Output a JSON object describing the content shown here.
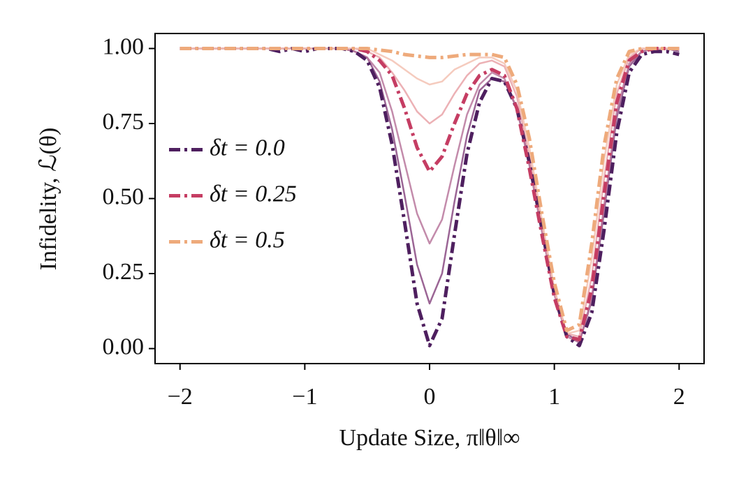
{
  "chart_data": {
    "type": "line",
    "xlabel": "Update Size, π‖θ‖∞",
    "ylabel": "Infidelity, ℒ(θ)",
    "x": [
      -2,
      -1.9,
      -1.8,
      -1.7,
      -1.6,
      -1.5,
      -1.4,
      -1.3,
      -1.2,
      -1.1,
      -1,
      -0.9,
      -0.8,
      -0.7,
      -0.6,
      -0.5,
      -0.4,
      -0.3,
      -0.2,
      -0.1,
      0,
      0.1,
      0.2,
      0.3,
      0.4,
      0.5,
      0.6,
      0.7,
      0.8,
      0.9,
      1,
      1.1,
      1.2,
      1.3,
      1.4,
      1.5,
      1.6,
      1.7,
      1.8,
      1.9,
      2
    ],
    "series": [
      {
        "name": "δt = 0.0",
        "color": "#4e1f5f",
        "dash": true,
        "values": [
          1,
          1,
          1,
          1,
          1,
          1,
          1,
          1,
          0.99,
          1,
          0.99,
          1,
          1,
          1,
          0.99,
          0.96,
          0.87,
          0.68,
          0.42,
          0.15,
          0.01,
          0.1,
          0.38,
          0.65,
          0.82,
          0.9,
          0.89,
          0.8,
          0.62,
          0.4,
          0.18,
          0.04,
          0.01,
          0.12,
          0.4,
          0.72,
          0.92,
          0.98,
          0.99,
          0.99,
          0.98
        ]
      },
      {
        "name": "δt = 0.25",
        "color": "#c53d63",
        "dash": true,
        "values": [
          1,
          1,
          1,
          1,
          1,
          1,
          1,
          1,
          1,
          1,
          1,
          1,
          1,
          1,
          1,
          0.99,
          0.96,
          0.91,
          0.8,
          0.67,
          0.59,
          0.64,
          0.75,
          0.85,
          0.91,
          0.93,
          0.91,
          0.8,
          0.6,
          0.38,
          0.17,
          0.04,
          0.03,
          0.2,
          0.52,
          0.82,
          0.96,
          0.99,
          1,
          1,
          1
        ]
      },
      {
        "name": "δt = 0.5",
        "color": "#eeaa7b",
        "dash": true,
        "values": [
          1,
          1,
          1,
          1,
          1,
          1,
          1,
          1,
          1,
          1,
          1,
          1,
          1,
          1,
          1,
          1,
          0.995,
          0.99,
          0.98,
          0.975,
          0.97,
          0.97,
          0.975,
          0.98,
          0.98,
          0.98,
          0.97,
          0.88,
          0.7,
          0.45,
          0.22,
          0.06,
          0.08,
          0.35,
          0.68,
          0.9,
          0.99,
          1,
          1,
          1,
          1
        ]
      },
      {
        "color": "#8a4a83",
        "dash": false,
        "values": [
          1,
          1,
          1,
          1,
          1,
          1,
          1,
          1,
          1,
          1,
          1,
          1,
          1,
          1,
          0.99,
          0.97,
          0.89,
          0.73,
          0.51,
          0.28,
          0.15,
          0.25,
          0.49,
          0.71,
          0.86,
          0.9,
          0.89,
          0.8,
          0.62,
          0.4,
          0.19,
          0.05,
          0.02,
          0.16,
          0.46,
          0.77,
          0.94,
          0.99,
          1,
          1,
          0.99
        ]
      },
      {
        "color": "#b9779c",
        "dash": false,
        "values": [
          1,
          1,
          1,
          1,
          1,
          1,
          1,
          1,
          1,
          1,
          1,
          1,
          1,
          1,
          0.99,
          0.97,
          0.92,
          0.79,
          0.62,
          0.45,
          0.35,
          0.43,
          0.61,
          0.78,
          0.88,
          0.92,
          0.9,
          0.8,
          0.61,
          0.39,
          0.18,
          0.04,
          0.02,
          0.17,
          0.48,
          0.79,
          0.95,
          0.99,
          1,
          1,
          1
        ]
      },
      {
        "color": "#e9a3a8",
        "dash": false,
        "values": [
          1,
          1,
          1,
          1,
          1,
          1,
          1,
          1,
          1,
          1,
          1,
          1,
          1,
          1,
          1,
          0.99,
          0.97,
          0.92,
          0.86,
          0.79,
          0.75,
          0.78,
          0.85,
          0.91,
          0.95,
          0.96,
          0.94,
          0.84,
          0.64,
          0.41,
          0.19,
          0.05,
          0.04,
          0.24,
          0.57,
          0.85,
          0.97,
          1,
          1,
          1,
          1
        ]
      },
      {
        "color": "#f3c2b3",
        "dash": false,
        "values": [
          1,
          1,
          1,
          1,
          1,
          1,
          1,
          1,
          1,
          1,
          1,
          1,
          1,
          1,
          1,
          1,
          0.98,
          0.96,
          0.93,
          0.9,
          0.88,
          0.89,
          0.93,
          0.95,
          0.97,
          0.97,
          0.95,
          0.86,
          0.67,
          0.43,
          0.2,
          0.05,
          0.06,
          0.3,
          0.63,
          0.88,
          0.98,
          1,
          1,
          1,
          1
        ]
      }
    ],
    "xlim": [
      -2.2,
      2.2
    ],
    "ylim": [
      -0.05,
      1.05
    ],
    "xticks": [
      {
        "value": -2,
        "label": "−2"
      },
      {
        "value": -1,
        "label": "−1"
      },
      0,
      1,
      2
    ],
    "yticks": [
      {
        "value": 0,
        "label": "0.00"
      },
      {
        "value": 0.25,
        "label": "0.25"
      },
      {
        "value": 0.5,
        "label": "0.50"
      },
      {
        "value": 0.75,
        "label": "0.75"
      },
      {
        "value": 1,
        "label": "1.00"
      }
    ],
    "legend": "center left"
  }
}
